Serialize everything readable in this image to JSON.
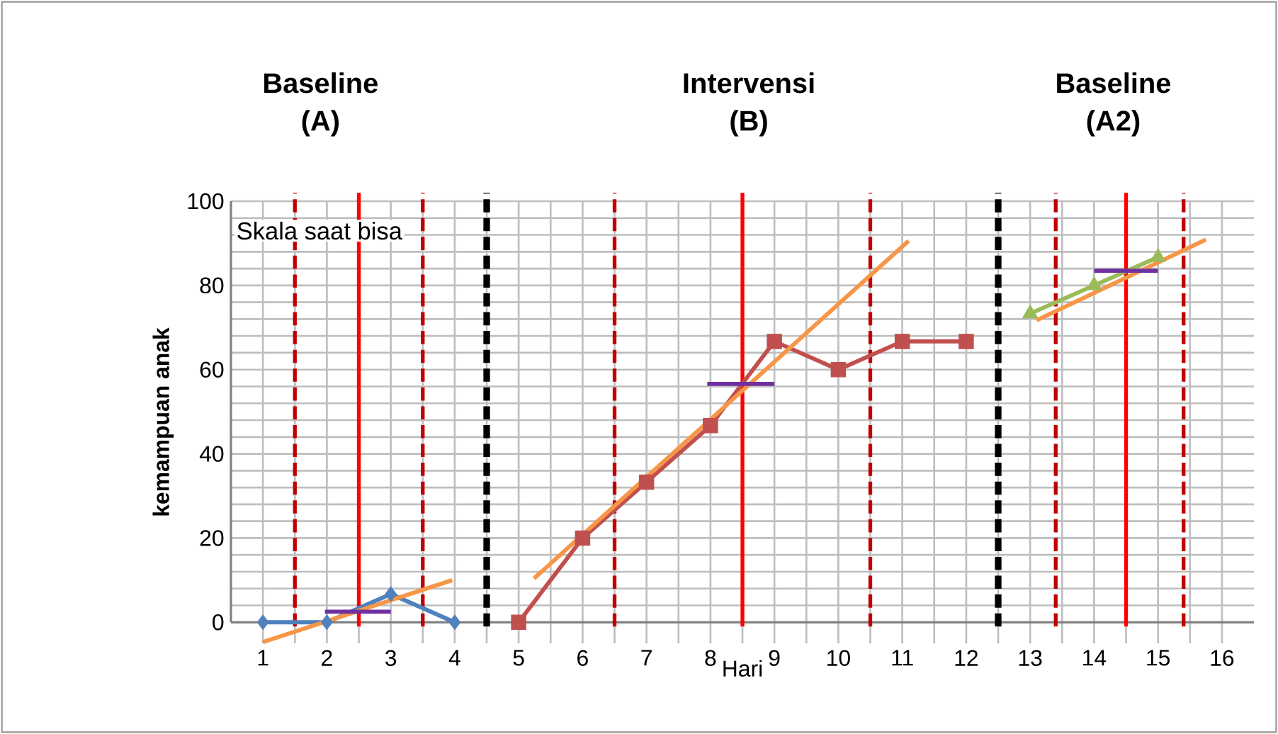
{
  "chart_data": {
    "type": "line",
    "xlabel": "Hari",
    "ylabel": "kemampuan anak",
    "xlim": [
      0.5,
      16.5
    ],
    "ylim": [
      -5,
      100
    ],
    "xticks": [
      1,
      2,
      3,
      4,
      5,
      6,
      7,
      8,
      9,
      10,
      11,
      12,
      13,
      14,
      15,
      16
    ],
    "yticks": [
      0,
      20,
      40,
      60,
      80,
      100
    ],
    "grid": true,
    "annotations": [
      "Baseline (A)",
      "Intervensi (B)",
      "Baseline (A2)",
      "Skala saat bisa"
    ],
    "series": [
      {
        "color": "#4f81bd",
        "marker": "diamond",
        "x": [
          1,
          2,
          3,
          4
        ],
        "values": [
          0,
          0,
          6.7,
          0
        ]
      },
      {
        "color": "#c0504d",
        "marker": "square",
        "x": [
          5,
          6,
          7,
          8,
          9,
          10,
          11,
          12
        ],
        "values": [
          0,
          20,
          33.3,
          46.7,
          66.7,
          60,
          66.7,
          66.7
        ]
      },
      {
        "color": "#9bbb59",
        "marker": "triangle",
        "x": [
          13,
          14,
          15
        ],
        "values": [
          73.3,
          80,
          86.7
        ]
      },
      {
        "color": "#f79646",
        "marker": "none",
        "x": [
          1,
          3.96
        ],
        "values": [
          -4.7,
          10
        ]
      },
      {
        "color": "#f79646",
        "marker": "none",
        "x": [
          5.24,
          11.1
        ],
        "values": [
          10.4,
          90.6
        ]
      },
      {
        "color": "#f79646",
        "marker": "none",
        "x": [
          13.1,
          15.75
        ],
        "values": [
          71.7,
          90.9
        ]
      },
      {
        "color": "#7030a0",
        "marker": "none",
        "x": [
          1.97,
          3.0
        ],
        "values": [
          2.5,
          2.5
        ]
      },
      {
        "color": "#7030a0",
        "marker": "none",
        "x": [
          7.95,
          9.0
        ],
        "values": [
          56.6,
          56.6
        ]
      },
      {
        "color": "#7030a0",
        "marker": "none",
        "x": [
          14.0,
          15.0
        ],
        "values": [
          83.5,
          83.5
        ]
      }
    ],
    "ref_lines": [
      {
        "axis": "x",
        "value": 1.5,
        "color": "#c00000",
        "line_style": "dashed"
      },
      {
        "axis": "x",
        "value": 2.5,
        "color": "#ff0000",
        "line_style": "solid"
      },
      {
        "axis": "x",
        "value": 3.5,
        "color": "#c00000",
        "line_style": "dashed"
      },
      {
        "axis": "x",
        "value": 4.5,
        "color": "#000000",
        "line_style": "dashed"
      },
      {
        "axis": "x",
        "value": 6.5,
        "color": "#c00000",
        "line_style": "dashed"
      },
      {
        "axis": "x",
        "value": 8.5,
        "color": "#ff0000",
        "line_style": "solid"
      },
      {
        "axis": "x",
        "value": 10.5,
        "color": "#c00000",
        "line_style": "dashed"
      },
      {
        "axis": "x",
        "value": 12.5,
        "color": "#000000",
        "line_style": "dashed"
      },
      {
        "axis": "x",
        "value": 13.4,
        "color": "#c00000",
        "line_style": "dashed"
      },
      {
        "axis": "x",
        "value": 14.5,
        "color": "#ff0000",
        "line_style": "solid"
      },
      {
        "axis": "x",
        "value": 15.4,
        "color": "#c00000",
        "line_style": "dashed"
      }
    ]
  }
}
